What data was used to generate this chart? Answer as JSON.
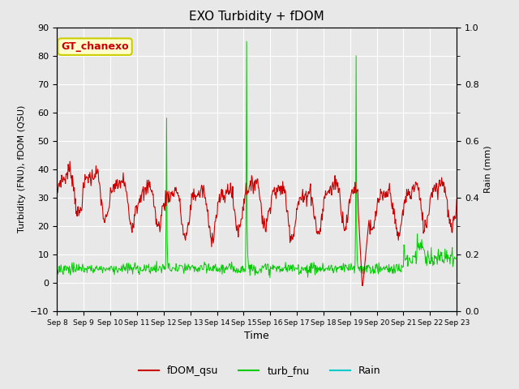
{
  "title": "EXO Turbidity + fDOM",
  "xlabel": "Time",
  "ylabel_left": "Turbidity (FNU), fDOM (QSU)",
  "ylabel_right": "Rain (mm)",
  "ylim_left": [
    -10,
    90
  ],
  "ylim_right": [
    0.0,
    1.0
  ],
  "yticks_left": [
    -10,
    0,
    10,
    20,
    30,
    40,
    50,
    60,
    70,
    80,
    90
  ],
  "yticks_right": [
    0.0,
    0.2,
    0.4,
    0.6,
    0.8,
    1.0
  ],
  "xtick_labels": [
    "Sep 8",
    "Sep 9",
    "Sep 10",
    "Sep 11",
    "Sep 12",
    "Sep 13",
    "Sep 14",
    "Sep 15",
    "Sep 16",
    "Sep 17",
    "Sep 18",
    "Sep 19",
    "Sep 20",
    "Sep 21",
    "Sep 22",
    "Sep 23"
  ],
  "background_color": "#e8e8e8",
  "plot_bg_color": "#e8e8e8",
  "fdom_color": "#cc0000",
  "turb_color": "#00cc00",
  "rain_color": "#00cccc",
  "annotation_text": "GT_chanexo",
  "annotation_bg": "#ffffcc",
  "annotation_border": "#cccc00",
  "annotation_text_color": "#cc0000",
  "legend_labels": [
    "fDOM_qsu",
    "turb_fnu",
    "Rain"
  ],
  "figsize": [
    6.4,
    4.8
  ],
  "dpi": 100
}
